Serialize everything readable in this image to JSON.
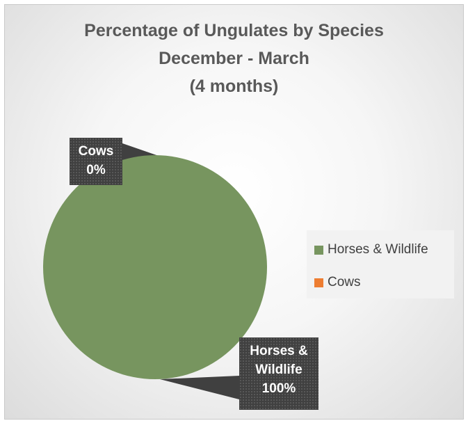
{
  "chart_data": {
    "type": "pie",
    "title_lines": [
      "Percentage of Ungulates by Species",
      "December - March",
      "(4 months)"
    ],
    "slices": [
      {
        "name": "Horses & Wildlife",
        "value": 100,
        "label_lines": [
          "Horses &",
          "Wildlife",
          "100%"
        ],
        "color": "#77955f"
      },
      {
        "name": "Cows",
        "value": 0,
        "label_lines": [
          "Cows",
          "0%"
        ],
        "color": "#ed7d31"
      }
    ],
    "legend": {
      "placement": "right",
      "items": [
        {
          "name": "Horses & Wildlife",
          "color": "#77955f"
        },
        {
          "name": "Cows",
          "color": "#ed7d31"
        }
      ]
    }
  }
}
